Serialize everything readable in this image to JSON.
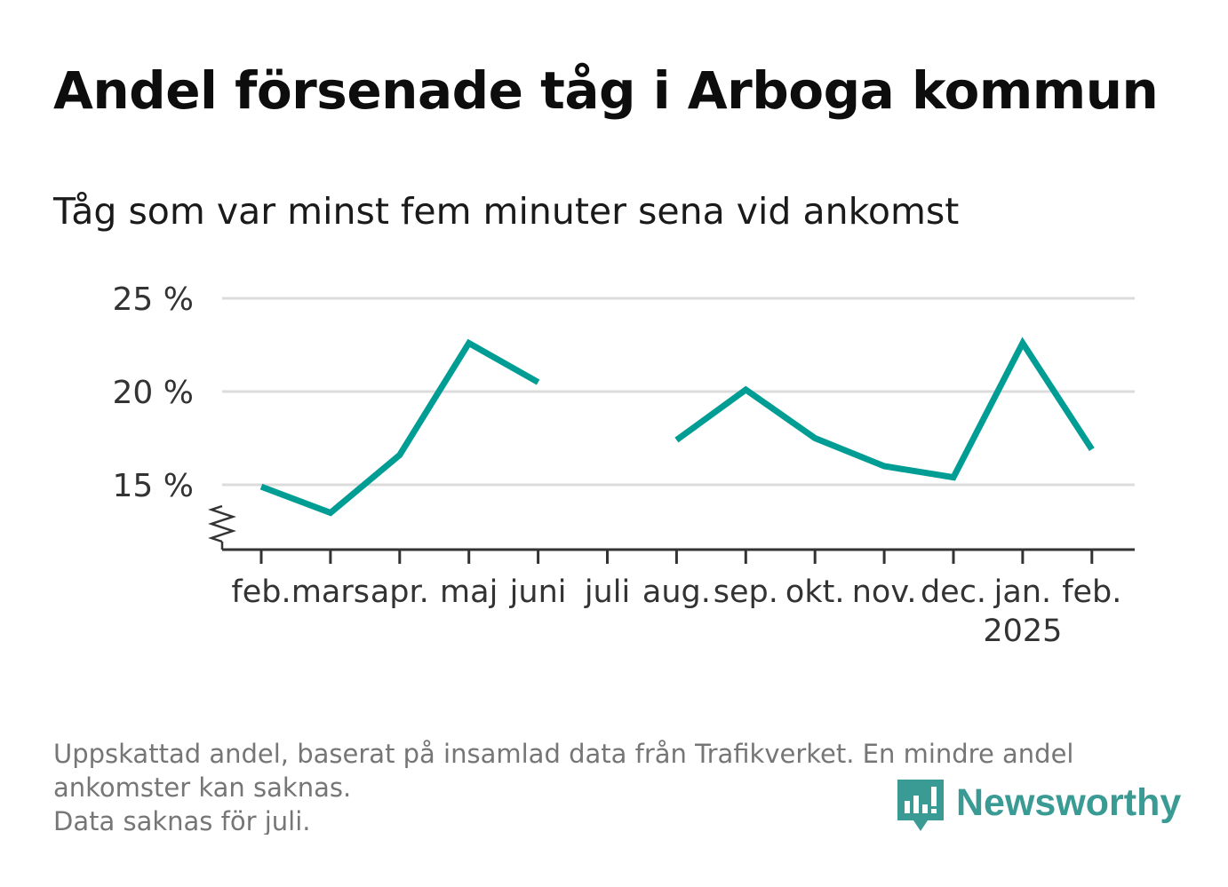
{
  "header": {
    "title": "Andel försenade tåg i Arboga kommun",
    "subtitle": "Tåg som var minst fem minuter sena vid ankomst"
  },
  "chart_data": {
    "type": "line",
    "title": "Andel försenade tåg i Arboga kommun",
    "subtitle": "Tåg som var minst fem minuter sena vid ankomst",
    "xlabel": "",
    "ylabel": "",
    "categories": [
      "feb.",
      "mars",
      "apr.",
      "maj",
      "juni",
      "juli",
      "aug.",
      "sep.",
      "okt.",
      "nov.",
      "dec.",
      "jan.",
      "feb."
    ],
    "year_labels": [
      "",
      "",
      "",
      "",
      "",
      "",
      "",
      "",
      "",
      "",
      "",
      "2025",
      ""
    ],
    "series": [
      {
        "values": [
          14.9,
          13.5,
          16.6,
          22.6,
          20.5,
          null,
          17.4,
          20.1,
          17.5,
          16.0,
          15.4,
          22.6,
          16.9
        ]
      }
    ],
    "yticks": [
      15,
      20,
      25
    ],
    "ytick_labels": [
      "15 %",
      "20 %",
      "25 %"
    ],
    "ylim": [
      11.5,
      25
    ],
    "y_axis_break": true,
    "grid": true,
    "line_color": "#009d94",
    "grid_color": "#dcdcdc"
  },
  "footer": {
    "note_line1": "Uppskattad andel, baserat på insamlad data från Trafikverket. En mindre andel ankomster kan saknas.",
    "note_line2": "Data saknas för juli."
  },
  "brand": {
    "name": "Newsworthy",
    "color": "#3a9a94",
    "icon": "newsworthy-logo-icon"
  }
}
